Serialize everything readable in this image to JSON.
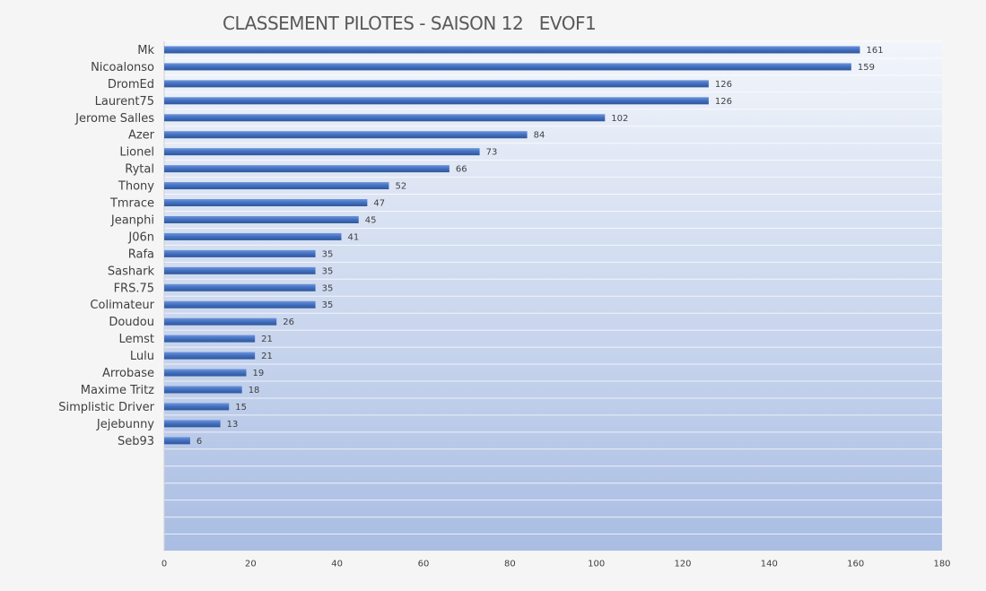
{
  "chart_data": {
    "type": "bar",
    "orientation": "horizontal",
    "title": "CLASSEMENT PILOTES - SAISON 12   EVOF1",
    "xlabel": "",
    "ylabel": "",
    "categories": [
      "Mk",
      "Nicoalonso",
      "DromEd",
      "Laurent75",
      "Jerome Salles",
      "Azer",
      "Lionel",
      "Rytal",
      "Thony",
      "Tmrace",
      "Jeanphi",
      "J06n",
      "Rafa",
      "Sashark",
      "FRS.75",
      "Colimateur",
      "Doudou",
      "Lemst",
      "Lulu",
      "Arrobase",
      "Maxime Tritz",
      "Simplistic Driver",
      "Jejebunny",
      "Seb93"
    ],
    "values": [
      161,
      159,
      126,
      126,
      102,
      84,
      73,
      66,
      52,
      47,
      45,
      41,
      35,
      35,
      35,
      35,
      26,
      21,
      21,
      19,
      18,
      15,
      13,
      6
    ],
    "xlim": [
      0,
      180
    ],
    "xticks": [
      0,
      20,
      40,
      60,
      80,
      100,
      120,
      140,
      160,
      180
    ],
    "empty_rows_after_data": 6,
    "grid": true,
    "legend": "none",
    "data_labels": true,
    "bar_color": "#4472c4",
    "plot_background_top": "#f2f5fb",
    "plot_background_bottom": "#a9bde3"
  }
}
